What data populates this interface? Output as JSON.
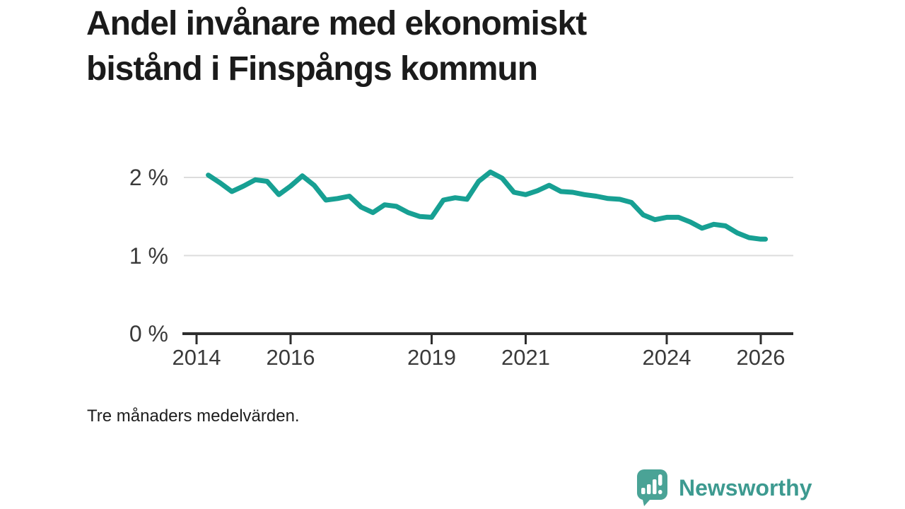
{
  "header": {
    "title": "Andel invånare med ekonomiskt bistånd i Finspångs kommun",
    "title_lines": [
      "Andel invånare med ekonomiskt",
      "bistånd i Finspångs kommun"
    ]
  },
  "footnote": "Tre månaders medelvärden.",
  "brand": {
    "name": "Newsworthy",
    "icon": "newsworthy-speech-bubble-bars-icon",
    "icon_color": "#4aa396",
    "text_color": "#3d9a90"
  },
  "colors": {
    "line": "#17a093",
    "grid": "#dcdcdc",
    "axis": "#2e2e2e",
    "title_text": "#1b1b1b",
    "tick_text": "#3a3a3a"
  },
  "chart_data": {
    "type": "line",
    "title": "Andel invånare med ekonomiskt bistånd i Finspångs kommun",
    "subtitle": "Tre månaders medelvärden.",
    "unit": "%",
    "grid": "horizontal-only",
    "legend": "none",
    "xlim": [
      2013.7,
      2026.7
    ],
    "ylim": [
      0,
      2.2
    ],
    "x_ticks": [
      2014,
      2016,
      2019,
      2021,
      2024,
      2026
    ],
    "x_tick_labels": [
      "2014",
      "2016",
      "2019",
      "2021",
      "2024",
      "2026"
    ],
    "y_ticks": [
      0,
      1,
      2
    ],
    "y_tick_labels": [
      "0 %",
      "1 %",
      "2 %"
    ],
    "series": [
      {
        "name": "Andel invånare med ekonomiskt bistånd i Finspångs kommun (%)",
        "x": [
          2014.25,
          2014.5,
          2014.75,
          2015.0,
          2015.25,
          2015.5,
          2015.75,
          2016.0,
          2016.25,
          2016.5,
          2016.75,
          2017.0,
          2017.25,
          2017.5,
          2017.75,
          2018.0,
          2018.25,
          2018.5,
          2018.75,
          2019.0,
          2019.25,
          2019.5,
          2019.75,
          2020.0,
          2020.25,
          2020.5,
          2020.75,
          2021.0,
          2021.25,
          2021.5,
          2021.75,
          2022.0,
          2022.25,
          2022.5,
          2022.75,
          2023.0,
          2023.25,
          2023.5,
          2023.75,
          2024.0,
          2024.25,
          2024.5,
          2024.75,
          2025.0,
          2025.25,
          2025.5,
          2025.75,
          2026.0,
          2026.1
        ],
        "y": [
          2.03,
          1.93,
          1.82,
          1.89,
          1.97,
          1.95,
          1.78,
          1.89,
          2.02,
          1.9,
          1.71,
          1.73,
          1.76,
          1.62,
          1.55,
          1.65,
          1.63,
          1.55,
          1.5,
          1.49,
          1.71,
          1.74,
          1.72,
          1.95,
          2.07,
          1.99,
          1.81,
          1.78,
          1.83,
          1.9,
          1.82,
          1.81,
          1.78,
          1.76,
          1.73,
          1.72,
          1.68,
          1.52,
          1.46,
          1.49,
          1.49,
          1.43,
          1.35,
          1.4,
          1.38,
          1.29,
          1.23,
          1.21,
          1.21
        ]
      }
    ]
  }
}
